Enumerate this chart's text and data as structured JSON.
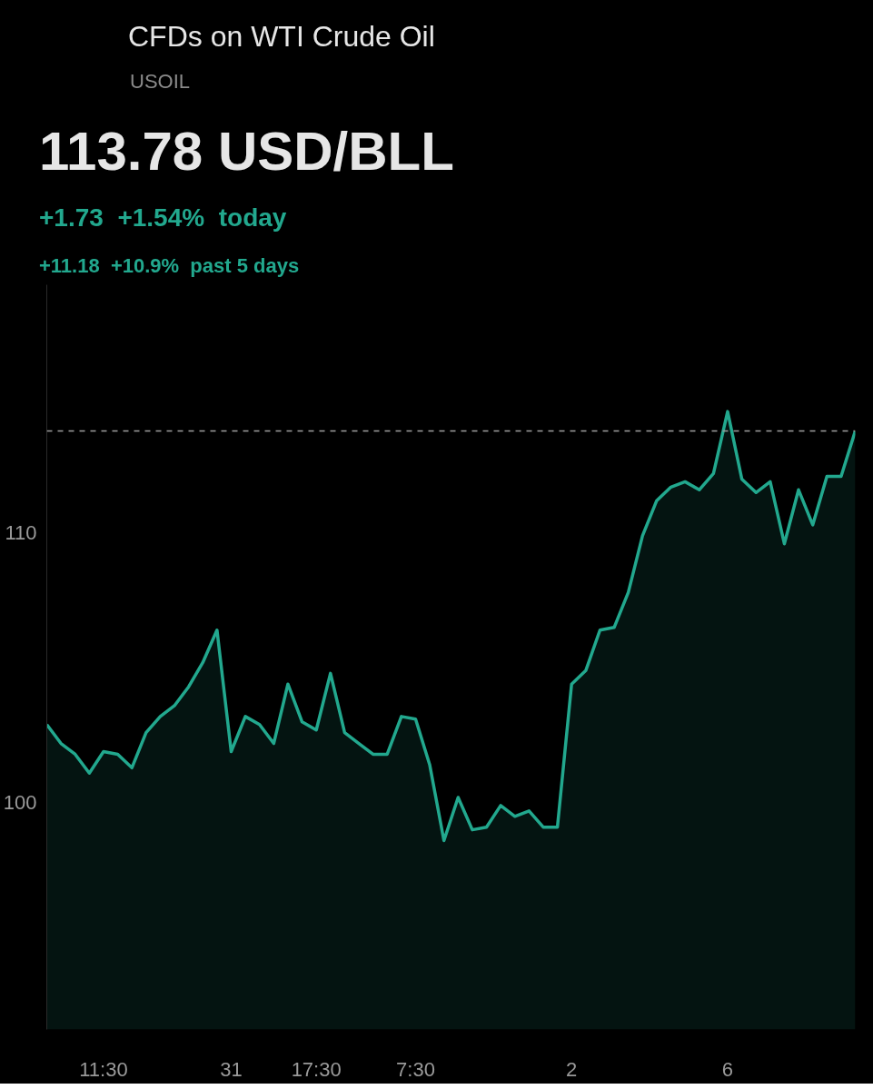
{
  "chart_data": {
    "type": "area",
    "title": "CFDs on WTI Crude Oil",
    "subtitle": "USOIL",
    "annotations": [
      "113.78 USD/BLL",
      "+1.73  +1.54%  today",
      "+11.18  +10.9%  past 5 days"
    ],
    "categories": [
      null,
      null,
      null,
      null,
      "11:30",
      null,
      null,
      null,
      null,
      null,
      null,
      null,
      null,
      "31",
      null,
      null,
      null,
      null,
      null,
      "17:30",
      null,
      null,
      null,
      null,
      null,
      null,
      "7:30",
      null,
      null,
      null,
      null,
      null,
      null,
      null,
      null,
      null,
      null,
      "2",
      null,
      null,
      null,
      null,
      null,
      null,
      null,
      null,
      null,
      null,
      "6",
      null,
      null,
      null,
      null,
      null,
      null,
      null,
      null,
      null
    ],
    "series": [
      {
        "color": "#22a88e",
        "values": [
          102.9,
          102.2,
          101.8,
          101.1,
          101.9,
          101.8,
          101.3,
          102.6,
          103.2,
          103.6,
          104.3,
          105.2,
          106.4,
          101.9,
          103.2,
          102.9,
          102.2,
          104.4,
          103.0,
          102.7,
          104.8,
          102.6,
          102.2,
          101.8,
          101.8,
          103.2,
          103.1,
          101.4,
          98.6,
          100.2,
          99.0,
          99.1,
          99.9,
          99.5,
          99.7,
          99.1,
          99.1,
          104.4,
          104.9,
          106.4,
          106.5,
          107.8,
          109.9,
          111.2,
          111.7,
          111.9,
          111.6,
          112.2,
          114.5,
          112.0,
          111.5,
          111.9,
          109.6,
          111.6,
          110.3,
          112.1,
          112.1,
          113.78
        ]
      }
    ],
    "ylim": [
      91.6,
      119.2
    ],
    "yticks": [
      100,
      110
    ],
    "ref_lines": [
      {
        "axis": "y",
        "value": 113.78,
        "color": "#9e9e9e",
        "line_style": "dashed"
      }
    ],
    "grid": false,
    "line_style": "solid"
  }
}
